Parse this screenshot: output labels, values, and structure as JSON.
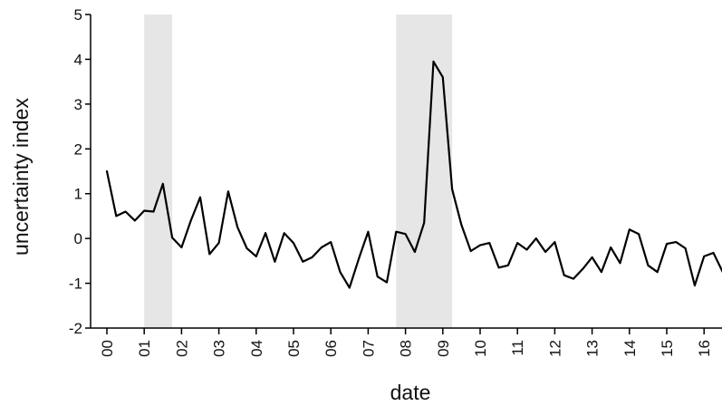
{
  "chart_data": {
    "type": "line",
    "xlabel": "date",
    "ylabel": "uncertainty index",
    "ylim": [
      -2,
      5
    ],
    "yticks": [
      5,
      4,
      3,
      2,
      1,
      0,
      -1,
      -2
    ],
    "ytick_labels": [
      "5",
      "4",
      "3",
      "2",
      "1",
      "0",
      "-1",
      "-2"
    ],
    "xlim": [
      1999.75,
      2016.75
    ],
    "xticks": [
      2000,
      2001,
      2002,
      2003,
      2004,
      2005,
      2006,
      2007,
      2008,
      2009,
      2010,
      2011,
      2012,
      2013,
      2014,
      2015,
      2016
    ],
    "xtick_labels": [
      "00",
      "01",
      "02",
      "03",
      "04",
      "05",
      "06",
      "07",
      "08",
      "09",
      "10",
      "11",
      "12",
      "13",
      "14",
      "15",
      "16"
    ],
    "grid": false,
    "shaded_periods": [
      {
        "start": 2001.0,
        "end": 2001.75
      },
      {
        "start": 2007.75,
        "end": 2009.25
      }
    ],
    "series": [
      {
        "color": "#000000",
        "x": [
          2000.0,
          2000.25,
          2000.5,
          2000.75,
          2001.0,
          2001.25,
          2001.5,
          2001.75,
          2002.0,
          2002.25,
          2002.5,
          2002.75,
          2003.0,
          2003.25,
          2003.5,
          2003.75,
          2004.0,
          2004.25,
          2004.5,
          2004.75,
          2005.0,
          2005.25,
          2005.5,
          2005.75,
          2006.0,
          2006.25,
          2006.5,
          2006.75,
          2007.0,
          2007.25,
          2007.5,
          2007.75,
          2008.0,
          2008.25,
          2008.5,
          2008.75,
          2009.0,
          2009.25,
          2009.5,
          2009.75,
          2010.0,
          2010.25,
          2010.5,
          2010.75,
          2011.0,
          2011.25,
          2011.5,
          2011.75,
          2012.0,
          2012.25,
          2012.5,
          2012.75,
          2013.0,
          2013.25,
          2013.5,
          2013.75,
          2014.0,
          2014.25,
          2014.5,
          2014.75,
          2015.0,
          2015.25,
          2015.5,
          2015.75,
          2016.0,
          2016.25,
          2016.5,
          2016.75
        ],
        "values": [
          1.5,
          0.5,
          0.6,
          0.4,
          0.62,
          0.6,
          1.22,
          0.02,
          -0.2,
          0.4,
          0.92,
          -0.35,
          -0.1,
          1.05,
          0.25,
          -0.22,
          -0.4,
          0.12,
          -0.52,
          0.12,
          -0.1,
          -0.52,
          -0.42,
          -0.2,
          -0.08,
          -0.75,
          -1.1,
          -0.45,
          0.15,
          -0.85,
          -0.98,
          0.15,
          0.1,
          -0.3,
          0.35,
          3.95,
          3.6,
          1.1,
          0.3,
          -0.28,
          -0.15,
          -0.1,
          -0.65,
          -0.6,
          -0.1,
          -0.25,
          0.0,
          -0.3,
          -0.08,
          -0.82,
          -0.9,
          -0.68,
          -0.42,
          -0.75,
          -0.2,
          -0.55,
          0.2,
          0.1,
          -0.6,
          -0.75,
          -0.12,
          -0.08,
          -0.22,
          -1.05,
          -0.4,
          -0.32,
          -0.75,
          -0.6
        ]
      }
    ]
  }
}
